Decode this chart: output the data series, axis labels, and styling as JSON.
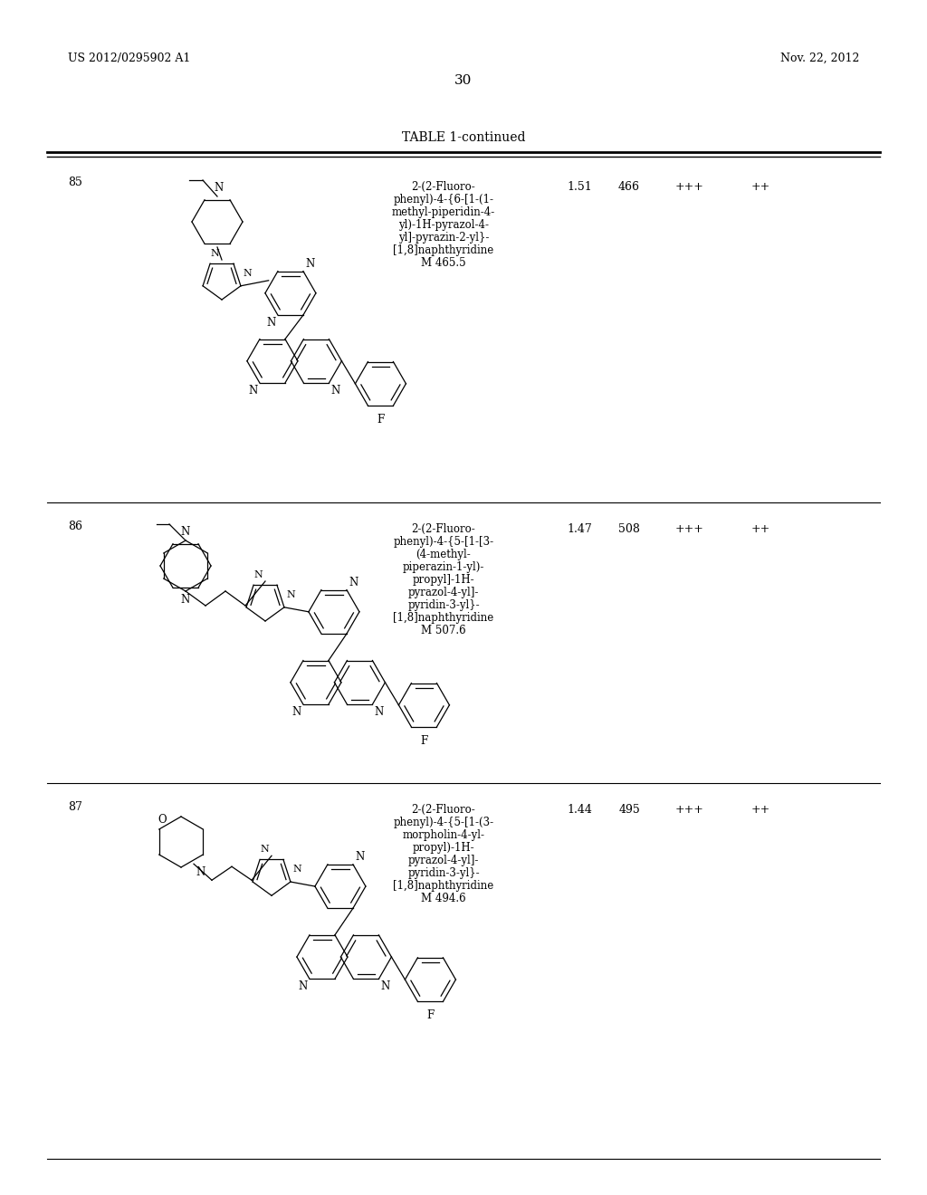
{
  "background_color": "#ffffff",
  "page_number": "30",
  "header_left": "US 2012/0295902 A1",
  "header_right": "Nov. 22, 2012",
  "table_title": "TABLE 1-continued",
  "entries": [
    {
      "row_num": "85",
      "col_values": [
        "1.51",
        "466",
        "+++",
        "++"
      ],
      "name_lines": [
        "2-(2-Fluoro-",
        "phenyl)-4-{6-[1-(1-",
        "methyl-piperidin-4-",
        "yl)-1H-pyrazol-4-",
        "yl]-pyrazin-2-yl}-",
        "[1,8]naphthyridine",
        "M 465.5"
      ]
    },
    {
      "row_num": "86",
      "col_values": [
        "1.47",
        "508",
        "+++",
        "++"
      ],
      "name_lines": [
        "2-(2-Fluoro-",
        "phenyl)-4-{5-[1-[3-",
        "(4-methyl-",
        "piperazin-1-yl)-",
        "propyl]-1H-",
        "pyrazol-4-yl]-",
        "pyridin-3-yl}-",
        "[1,8]naphthyridine",
        "M 507.6"
      ]
    },
    {
      "row_num": "87",
      "col_values": [
        "1.44",
        "495",
        "+++",
        "++"
      ],
      "name_lines": [
        "2-(2-Fluoro-",
        "phenyl)-4-{5-[1-(3-",
        "morpholin-4-yl-",
        "propyl)-1H-",
        "pyrazol-4-yl]-",
        "pyridin-3-yl}-",
        "[1,8]naphthyridine",
        "M 494.6"
      ]
    }
  ],
  "text_color": "#000000",
  "line_color": "#000000"
}
